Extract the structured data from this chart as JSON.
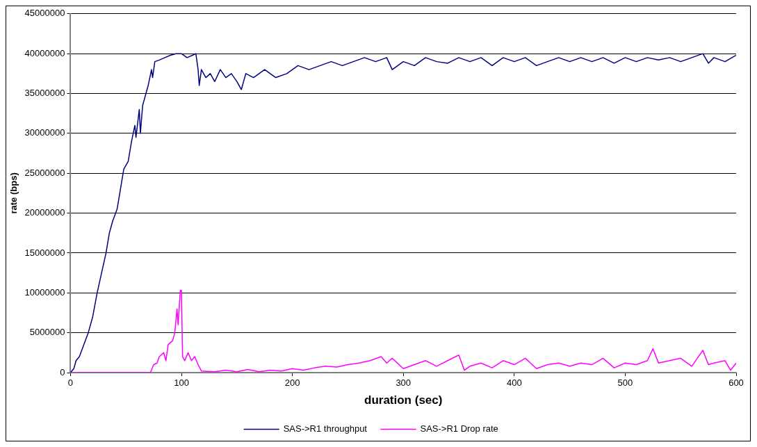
{
  "chart_data": {
    "type": "line",
    "xlabel": "duration (sec)",
    "ylabel": "rate (bps)",
    "xlim": [
      0,
      600
    ],
    "xticks": [
      0,
      100,
      200,
      300,
      400,
      500,
      600
    ],
    "ylim": [
      0,
      45000000
    ],
    "yticks": [
      0,
      5000000,
      10000000,
      15000000,
      20000000,
      25000000,
      30000000,
      35000000,
      40000000,
      45000000
    ],
    "grid": "y",
    "legend": "bottom",
    "marker": "none",
    "line_style": "solid",
    "series": [
      {
        "name": "SAS->R1 throughput",
        "color": "#000080",
        "x": [
          0,
          3,
          5,
          8,
          12,
          16,
          20,
          24,
          28,
          32,
          35,
          38,
          42,
          45,
          48,
          52,
          55,
          58,
          59,
          62,
          63,
          65,
          68,
          70,
          73,
          74,
          76,
          80,
          85,
          90,
          95,
          100,
          105,
          110,
          113,
          115,
          116,
          118,
          122,
          126,
          130,
          135,
          140,
          145,
          150,
          154,
          158,
          165,
          175,
          185,
          195,
          205,
          215,
          225,
          235,
          245,
          255,
          265,
          275,
          285,
          290,
          300,
          310,
          320,
          330,
          340,
          350,
          360,
          370,
          380,
          390,
          400,
          410,
          420,
          430,
          440,
          450,
          460,
          470,
          480,
          490,
          500,
          510,
          520,
          530,
          540,
          550,
          560,
          570,
          575,
          580,
          590,
          600
        ],
        "values": [
          0,
          500000,
          1500000,
          2000000,
          3500000,
          5000000,
          7000000,
          10000000,
          12500000,
          15000000,
          17500000,
          19000000,
          20500000,
          23000000,
          25500000,
          26500000,
          29000000,
          31000000,
          29500000,
          33000000,
          30000000,
          33500000,
          35000000,
          36000000,
          38000000,
          37000000,
          39000000,
          39200000,
          39500000,
          39800000,
          40000000,
          40000000,
          39500000,
          39800000,
          40000000,
          38000000,
          36000000,
          38000000,
          37000000,
          37500000,
          36500000,
          38000000,
          37000000,
          37500000,
          36500000,
          35500000,
          37500000,
          37000000,
          38000000,
          37000000,
          37500000,
          38500000,
          38000000,
          38500000,
          39000000,
          38500000,
          39000000,
          39500000,
          39000000,
          39500000,
          38000000,
          39000000,
          38500000,
          39500000,
          39000000,
          38800000,
          39500000,
          39000000,
          39500000,
          38500000,
          39500000,
          39000000,
          39500000,
          38500000,
          39000000,
          39500000,
          39000000,
          39500000,
          39000000,
          39500000,
          38800000,
          39500000,
          39000000,
          39500000,
          39200000,
          39500000,
          39000000,
          39500000,
          40000000,
          38800000,
          39500000,
          39000000,
          39800000
        ]
      },
      {
        "name": "SAS->R1 Drop rate",
        "color": "#ff00ff",
        "x": [
          0,
          72,
          75,
          78,
          80,
          84,
          86,
          88,
          92,
          94,
          96,
          97,
          99,
          100,
          101,
          103,
          106,
          109,
          112,
          115,
          118,
          130,
          140,
          150,
          160,
          170,
          180,
          190,
          200,
          210,
          220,
          230,
          240,
          250,
          260,
          270,
          280,
          285,
          290,
          300,
          310,
          320,
          330,
          340,
          350,
          355,
          360,
          370,
          380,
          390,
          400,
          410,
          420,
          430,
          440,
          450,
          460,
          470,
          480,
          490,
          500,
          510,
          520,
          525,
          530,
          540,
          550,
          560,
          570,
          575,
          580,
          590,
          595,
          600
        ],
        "values": [
          0,
          0,
          1000000,
          1200000,
          2000000,
          2500000,
          1500000,
          3500000,
          4000000,
          5000000,
          8000000,
          6000000,
          10300000,
          10300000,
          2000000,
          1500000,
          2500000,
          1500000,
          2000000,
          1000000,
          200000,
          100000,
          300000,
          100000,
          400000,
          100000,
          300000,
          200000,
          500000,
          300000,
          600000,
          800000,
          700000,
          1000000,
          1200000,
          1500000,
          2000000,
          1200000,
          1800000,
          500000,
          1000000,
          1500000,
          800000,
          1500000,
          2200000,
          300000,
          800000,
          1200000,
          600000,
          1500000,
          1000000,
          1800000,
          500000,
          1000000,
          1200000,
          800000,
          1200000,
          1000000,
          1800000,
          600000,
          1200000,
          1000000,
          1500000,
          3000000,
          1200000,
          1500000,
          1800000,
          800000,
          2800000,
          1000000,
          1200000,
          1500000,
          300000,
          1200000
        ]
      }
    ]
  }
}
